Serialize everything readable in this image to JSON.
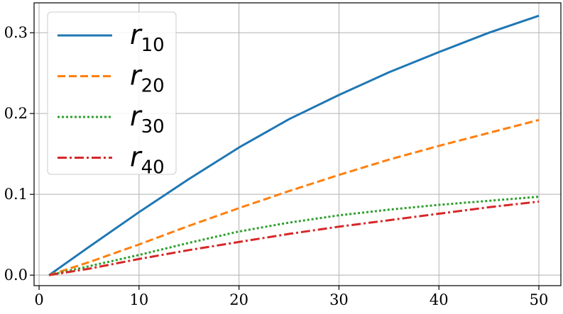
{
  "chart_data": {
    "type": "line",
    "title": "",
    "xlabel": "",
    "ylabel": "",
    "xlim": [
      -0.5,
      52.2
    ],
    "ylim": [
      -0.013,
      0.337
    ],
    "grid": true,
    "legend_position": "top-left",
    "x_ticks": [
      0,
      10,
      20,
      30,
      40,
      50
    ],
    "x_tick_labels": [
      "0",
      "10",
      "20",
      "30",
      "40",
      "50"
    ],
    "y_ticks": [
      0.0,
      0.1,
      0.2,
      0.3
    ],
    "y_tick_labels": [
      "0.0",
      "0.1",
      "0.2",
      "0.3"
    ],
    "series": [
      {
        "name": "r",
        "name_sub": "10",
        "color": "#1f77b4",
        "dash": "solid",
        "x": [
          1,
          5,
          10,
          15,
          20,
          25,
          30,
          35,
          40,
          45,
          50
        ],
        "y": [
          0.0,
          0.035,
          0.078,
          0.119,
          0.158,
          0.193,
          0.223,
          0.251,
          0.276,
          0.3,
          0.321
        ]
      },
      {
        "name": "r",
        "name_sub": "20",
        "color": "#ff7f0e",
        "dash": "dashed",
        "x": [
          1,
          5,
          10,
          15,
          20,
          25,
          30,
          35,
          40,
          45,
          50
        ],
        "y": [
          0.0,
          0.016,
          0.038,
          0.061,
          0.083,
          0.104,
          0.124,
          0.143,
          0.16,
          0.176,
          0.192
        ]
      },
      {
        "name": "r",
        "name_sub": "30",
        "color": "#2ca02c",
        "dash": "dotted",
        "x": [
          1,
          5,
          10,
          15,
          20,
          25,
          30,
          35,
          40,
          45,
          50
        ],
        "y": [
          0.0,
          0.011,
          0.025,
          0.04,
          0.054,
          0.065,
          0.074,
          0.081,
          0.087,
          0.092,
          0.097
        ]
      },
      {
        "name": "r",
        "name_sub": "40",
        "color": "#d62728",
        "dash": "dashdot",
        "x": [
          1,
          5,
          10,
          15,
          20,
          25,
          30,
          35,
          40,
          45,
          50
        ],
        "y": [
          0.0,
          0.008,
          0.02,
          0.031,
          0.041,
          0.051,
          0.06,
          0.068,
          0.076,
          0.084,
          0.091
        ]
      }
    ]
  }
}
